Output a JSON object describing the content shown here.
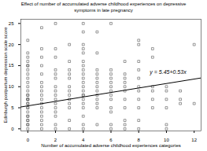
{
  "chart_data": {
    "type": "scatter",
    "title": "Effect of number of accumulated adverse childhood experiences on depressive\nsymptoms in late pregnancy",
    "xlabel": "Number of accumulated adverse childhood experiences categories",
    "ylabel": "Edinburgh postpartum depression scale score",
    "xlim": [
      -0.5,
      12.5
    ],
    "ylim": [
      -0.5,
      26
    ],
    "xticks": [
      0,
      2,
      4,
      6,
      8,
      10,
      12
    ],
    "yticks": [
      0,
      5,
      10,
      15,
      20,
      25
    ],
    "color": "#555555",
    "marker": "square",
    "x": [
      0,
      0,
      0,
      0,
      0,
      0,
      0,
      0,
      0,
      0,
      0,
      0,
      0,
      0,
      0,
      0,
      0,
      0,
      0,
      0,
      0,
      0,
      0,
      0,
      0,
      0,
      0,
      0,
      0,
      1,
      1,
      1,
      1,
      1,
      1,
      1,
      1,
      1,
      1,
      1,
      1,
      1,
      1,
      1,
      1,
      1,
      2,
      2,
      2,
      2,
      2,
      2,
      2,
      2,
      2,
      2,
      2,
      2,
      2,
      2,
      2,
      2,
      3,
      3,
      3,
      3,
      3,
      3,
      3,
      3,
      3,
      3,
      3,
      3,
      3,
      4,
      4,
      4,
      4,
      4,
      4,
      4,
      4,
      4,
      4,
      4,
      4,
      4,
      4,
      4,
      4,
      4,
      4,
      4,
      4,
      4,
      5,
      5,
      5,
      5,
      5,
      5,
      5,
      5,
      5,
      5,
      5,
      5,
      5,
      6,
      6,
      6,
      6,
      6,
      6,
      6,
      6,
      6,
      6,
      6,
      6,
      6,
      7,
      7,
      7,
      7,
      7,
      7,
      7,
      7,
      7,
      7,
      7,
      8,
      8,
      8,
      8,
      8,
      8,
      8,
      8,
      8,
      8,
      8,
      9,
      9,
      9,
      9,
      9,
      9,
      10,
      10,
      10,
      10,
      10,
      10,
      11,
      11,
      11,
      12,
      12
    ],
    "values": [
      0,
      1,
      1,
      2,
      2,
      3,
      3,
      4,
      5,
      5,
      6,
      6,
      7,
      7,
      7,
      8,
      8,
      9,
      10,
      11,
      12,
      13,
      14,
      15,
      15,
      16,
      17,
      18,
      21,
      0,
      1,
      2,
      3,
      4,
      5,
      6,
      7,
      8,
      9,
      10,
      11,
      13,
      15,
      17,
      19,
      24,
      0,
      1,
      3,
      4,
      5,
      6,
      7,
      8,
      9,
      10,
      12,
      13,
      14,
      17,
      19,
      25,
      0,
      2,
      5,
      6,
      7,
      8,
      9,
      10,
      12,
      13,
      14,
      16,
      20,
      0,
      1,
      3,
      5,
      6,
      7,
      8,
      8,
      9,
      10,
      11,
      12,
      13,
      14,
      15,
      16,
      18,
      19,
      20,
      23,
      25,
      1,
      5,
      6,
      7,
      8,
      9,
      10,
      11,
      12,
      13,
      14,
      18,
      23,
      0,
      1,
      4,
      5,
      7,
      8,
      9,
      10,
      11,
      12,
      13,
      14,
      25,
      0,
      1,
      2,
      5,
      7,
      9,
      10,
      11,
      12,
      13,
      16,
      0,
      2,
      5,
      7,
      9,
      10,
      12,
      14,
      16,
      20,
      21,
      5,
      7,
      9,
      10,
      17,
      19,
      0,
      1,
      5,
      7,
      9,
      10,
      6,
      7,
      9,
      6,
      20
    ],
    "fit_line": {
      "x": [
        -0.5,
        12.5
      ],
      "values": [
        5.185,
        12.075
      ],
      "color": "#000000"
    },
    "annotations": [
      {
        "text": "y = 5.45+0.53x",
        "x": 8.8,
        "y": 12.8
      }
    ]
  }
}
